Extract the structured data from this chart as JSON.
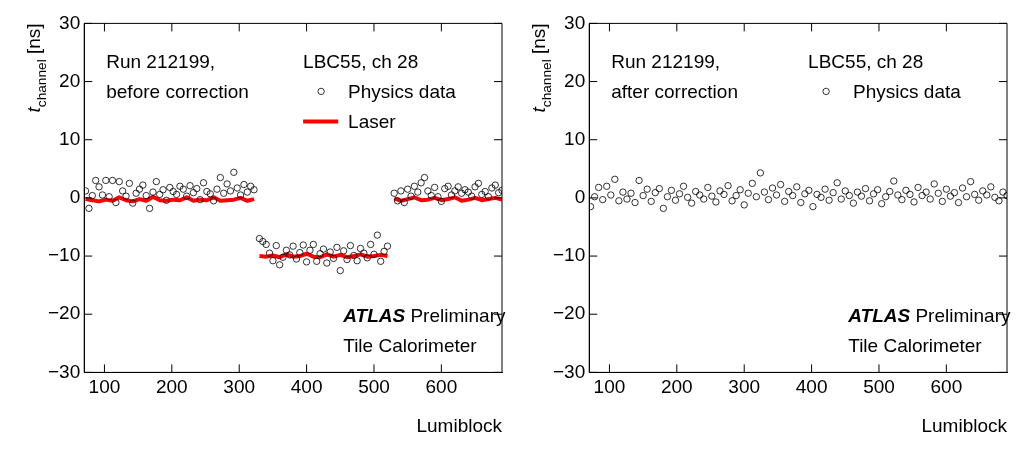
{
  "chart_data": [
    {
      "type": "scatter",
      "xlabel": "Lumiblock",
      "ylabel": "t$_{channel}$ [ns]",
      "xlim": [
        70,
        690
      ],
      "ylim": [
        -30,
        30
      ],
      "xticks": [
        100,
        200,
        300,
        400,
        500,
        600
      ],
      "yticks": [
        -30,
        -20,
        -10,
        0,
        10,
        20,
        30
      ],
      "legend": "top right",
      "legend_title": "LBC55, ch 28",
      "annotations": [
        "Run 212199,",
        "before correction",
        "ATLAS Preliminary",
        "Tile Calorimeter"
      ],
      "series": [
        {
          "name": "Physics data",
          "type": "scatter",
          "marker": "circle",
          "color": "#000000",
          "x": [
            72,
            77,
            82,
            87,
            92,
            97,
            102,
            107,
            112,
            117,
            122,
            127,
            132,
            137,
            142,
            147,
            152,
            157,
            162,
            167,
            172,
            177,
            182,
            187,
            192,
            197,
            202,
            207,
            212,
            217,
            222,
            227,
            232,
            237,
            242,
            247,
            252,
            257,
            262,
            267,
            272,
            277,
            282,
            287,
            292,
            297,
            302,
            307,
            312,
            317,
            322,
            330,
            335,
            340,
            345,
            350,
            355,
            360,
            365,
            370,
            375,
            380,
            385,
            390,
            395,
            400,
            405,
            410,
            415,
            420,
            425,
            430,
            435,
            440,
            445,
            450,
            455,
            460,
            465,
            470,
            475,
            480,
            485,
            490,
            495,
            500,
            505,
            510,
            515,
            520,
            530,
            535,
            540,
            545,
            550,
            555,
            560,
            565,
            570,
            575,
            580,
            585,
            590,
            595,
            600,
            605,
            610,
            615,
            620,
            625,
            630,
            635,
            640,
            645,
            650,
            655,
            660,
            665,
            670,
            675,
            680,
            685,
            690
          ],
          "values": [
            1.2,
            -1.8,
            0.4,
            3.0,
            1.9,
            0.5,
            3.0,
            0.2,
            3.0,
            -0.8,
            2.8,
            1.2,
            0.3,
            2.5,
            -0.9,
            0.8,
            1.5,
            2.2,
            0.4,
            -1.8,
            1.0,
            2.8,
            0.6,
            1.4,
            -0.4,
            1.8,
            1.1,
            0.6,
            2.0,
            1.5,
            0.3,
            2.1,
            0.9,
            1.6,
            -0.3,
            2.6,
            1.1,
            0.7,
            -0.5,
            1.5,
            3.5,
            0.8,
            2.4,
            1.2,
            4.4,
            1.7,
            0.5,
            2.3,
            1.0,
            2.0,
            1.4,
            -7.0,
            -7.5,
            -8.0,
            -9.5,
            -10.8,
            -8.2,
            -11.5,
            -10.2,
            -9.0,
            -9.8,
            -8.3,
            -10.5,
            -9.4,
            -8.1,
            -11.0,
            -9.0,
            -8.0,
            -10.9,
            -9.6,
            -8.8,
            -11.2,
            -9.3,
            -10.4,
            -8.5,
            -12.5,
            -9.1,
            -10.6,
            -8.2,
            -9.9,
            -10.8,
            -8.7,
            -9.5,
            -10.3,
            -8.0,
            -9.7,
            -6.4,
            -10.9,
            -9.2,
            -8.3,
            0.8,
            -0.5,
            1.2,
            -0.8,
            1.5,
            0.3,
            2.0,
            1.0,
            2.6,
            3.5,
            1.2,
            0.4,
            1.8,
            0.2,
            -0.6,
            1.6,
            2.0,
            0.5,
            1.2,
            1.9,
            0.8,
            1.4,
            1.0,
            0.3,
            1.9,
            2.5,
            0.6,
            1.1,
            0.2,
            1.7,
            2.2,
            0.9,
            1.3
          ]
        },
        {
          "name": "Laser",
          "type": "line",
          "marker": "none",
          "line_style": "solid",
          "color": "#ff0000",
          "x": [
            72,
            82,
            92,
            102,
            112,
            122,
            132,
            142,
            152,
            162,
            172,
            182,
            192,
            202,
            212,
            222,
            232,
            242,
            252,
            262,
            272,
            282,
            292,
            302,
            312,
            322,
            326,
            330,
            340,
            350,
            360,
            370,
            380,
            390,
            400,
            410,
            420,
            430,
            440,
            450,
            460,
            470,
            480,
            490,
            500,
            510,
            520,
            525,
            530,
            540,
            550,
            560,
            570,
            580,
            590,
            600,
            610,
            620,
            630,
            640,
            650,
            660,
            670,
            680,
            690
          ],
          "values": [
            -0.2,
            -0.4,
            -0.6,
            -0.3,
            -0.5,
            0.1,
            -0.4,
            -0.6,
            -0.2,
            -0.5,
            0.2,
            -0.4,
            -0.5,
            -0.3,
            -0.4,
            0.1,
            -0.5,
            -0.3,
            -0.4,
            0.1,
            -0.5,
            -0.4,
            -0.3,
            0.0,
            -0.5,
            -0.2,
            null,
            -10.0,
            -10.1,
            -9.9,
            -10.2,
            -9.7,
            -10.1,
            -10.0,
            -9.6,
            -10.1,
            -10.2,
            -9.7,
            -10.1,
            -9.8,
            -10.2,
            -10.0,
            -9.7,
            -10.1,
            -10.0,
            -9.8,
            -10.0,
            null,
            -0.1,
            -0.5,
            -0.2,
            0.1,
            -0.4,
            -0.3,
            0.0,
            -0.4,
            -0.2,
            0.1,
            -0.5,
            -0.3,
            0.0,
            -0.4,
            -0.2,
            0.0,
            -0.3
          ]
        }
      ]
    },
    {
      "type": "scatter",
      "xlabel": "Lumiblock",
      "ylabel": "t$_{channel}$ [ns]",
      "xlim": [
        70,
        690
      ],
      "ylim": [
        -30,
        30
      ],
      "xticks": [
        100,
        200,
        300,
        400,
        500,
        600
      ],
      "yticks": [
        -30,
        -20,
        -10,
        0,
        10,
        20,
        30
      ],
      "legend": "top right",
      "legend_title": "LBC55, ch 28",
      "annotations": [
        "Run 212199,",
        "after correction",
        "ATLAS Preliminary",
        "Tile Calorimeter"
      ],
      "series": [
        {
          "name": "Physics data",
          "type": "scatter",
          "marker": "circle",
          "color": "#000000",
          "x": [
            72,
            78,
            84,
            90,
            96,
            102,
            108,
            114,
            120,
            126,
            132,
            138,
            144,
            150,
            156,
            162,
            168,
            174,
            180,
            186,
            192,
            198,
            204,
            210,
            216,
            222,
            228,
            234,
            240,
            246,
            252,
            258,
            264,
            270,
            276,
            282,
            288,
            294,
            300,
            306,
            312,
            318,
            324,
            330,
            336,
            342,
            348,
            354,
            360,
            366,
            372,
            378,
            384,
            390,
            396,
            402,
            408,
            414,
            420,
            426,
            432,
            438,
            444,
            450,
            456,
            462,
            468,
            474,
            480,
            486,
            492,
            498,
            504,
            510,
            516,
            522,
            528,
            534,
            540,
            546,
            552,
            558,
            564,
            570,
            576,
            582,
            588,
            594,
            600,
            606,
            612,
            618,
            624,
            630,
            636,
            642,
            648,
            654,
            660,
            666,
            672,
            678,
            684,
            690
          ],
          "values": [
            -1.5,
            0.2,
            1.8,
            -0.3,
            2.0,
            0.5,
            3.2,
            -0.5,
            1.0,
            -0.2,
            0.8,
            -0.8,
            3.0,
            0.4,
            1.5,
            -0.6,
            0.9,
            1.6,
            -1.8,
            0.2,
            1.3,
            -0.4,
            0.7,
            2.0,
            0.1,
            -0.9,
            1.1,
            0.5,
            -0.2,
            1.8,
            0.3,
            -0.7,
            1.2,
            0.6,
            2.1,
            -0.5,
            0.4,
            1.4,
            -1.2,
            0.8,
            2.5,
            0.2,
            4.3,
            1.0,
            -0.3,
            1.7,
            0.5,
            2.3,
            -0.6,
            1.1,
            0.4,
            1.9,
            -0.8,
            0.7,
            1.3,
            -1.5,
            0.6,
            0.1,
            1.5,
            -0.4,
            0.9,
            2.6,
            -0.2,
            1.2,
            0.4,
            -0.9,
            1.0,
            0.3,
            1.6,
            -0.5,
            0.7,
            1.4,
            -1.0,
            0.2,
            1.1,
            2.9,
            0.5,
            -0.3,
            1.3,
            0.6,
            -0.7,
            1.8,
            0.4,
            1.0,
            -0.2,
            2.4,
            0.8,
            -0.6,
            1.5,
            0.3,
            0.9,
            -0.8,
            1.7,
            0.2,
            2.8,
            0.6,
            -0.4,
            1.2,
            0.5,
            1.9,
            0.1,
            -0.5,
            1.0,
            0.4
          ]
        }
      ]
    }
  ]
}
